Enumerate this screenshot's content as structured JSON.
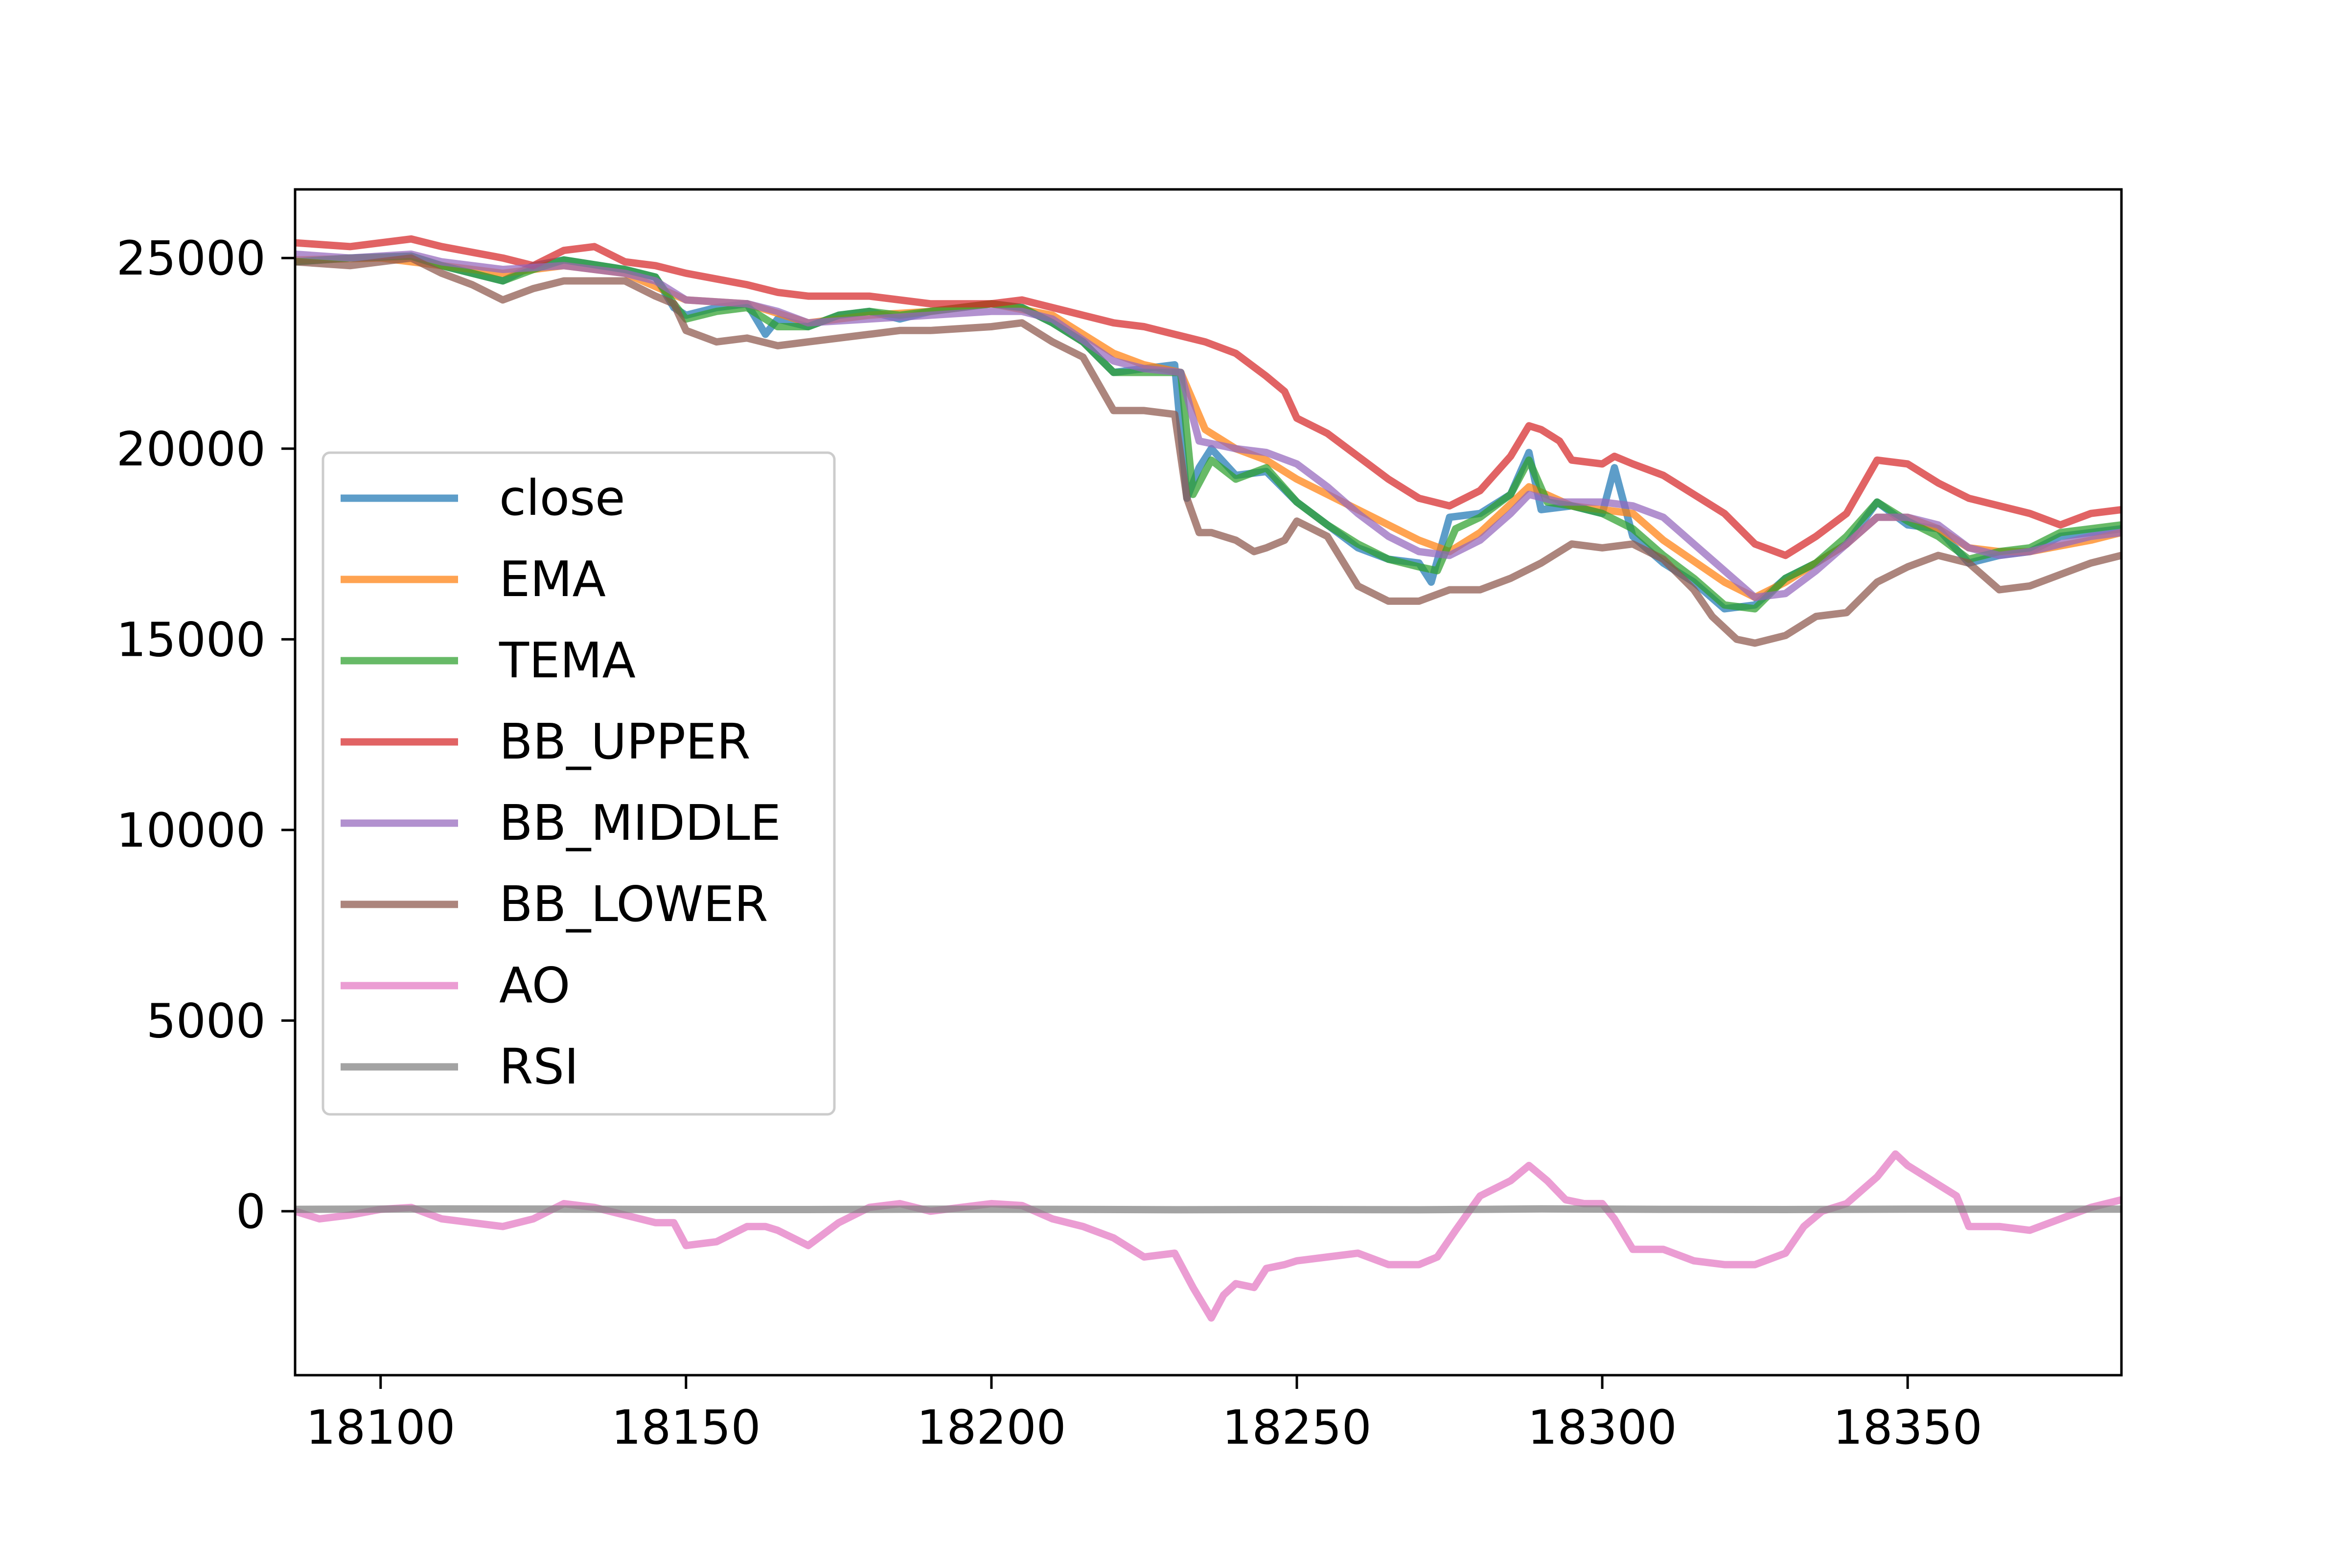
{
  "chart_data": {
    "type": "line",
    "title": "",
    "xlabel": "",
    "ylabel": "",
    "xlim": [
      18086,
      18385
    ],
    "ylim": [
      -4300,
      26800
    ],
    "xticks": [
      18100,
      18150,
      18200,
      18250,
      18300,
      18350
    ],
    "yticks": [
      0,
      5000,
      10000,
      15000,
      20000,
      25000
    ],
    "grid": false,
    "legend_position": "center-left",
    "series": [
      {
        "name": "close",
        "color": "#1f77b4",
        "x": [
          18086,
          18095,
          18105,
          18110,
          18120,
          18125,
          18130,
          18140,
          18145,
          18148,
          18150,
          18155,
          18160,
          18163,
          18165,
          18170,
          18175,
          18180,
          18185,
          18190,
          18195,
          18200,
          18205,
          18210,
          18215,
          18220,
          18225,
          18230,
          18232,
          18234,
          18236,
          18240,
          18245,
          18250,
          18255,
          18260,
          18265,
          18270,
          18272,
          18275,
          18280,
          18285,
          18288,
          18290,
          18295,
          18300,
          18302,
          18305,
          18310,
          18315,
          18320,
          18325,
          18330,
          18335,
          18340,
          18345,
          18350,
          18355,
          18360,
          18365,
          18370,
          18375,
          18380,
          18385
        ],
        "values": [
          24900,
          25000,
          25050,
          24800,
          24400,
          24800,
          24950,
          24700,
          24500,
          23700,
          23500,
          23700,
          23800,
          23000,
          23400,
          23200,
          23500,
          23600,
          23400,
          23600,
          23700,
          23800,
          23700,
          23300,
          22800,
          22000,
          22100,
          22200,
          18700,
          19500,
          20000,
          19300,
          19400,
          18600,
          18000,
          17400,
          17100,
          17000,
          16500,
          18200,
          18300,
          18800,
          19900,
          18400,
          18500,
          18300,
          19500,
          17700,
          17000,
          16500,
          15800,
          15900,
          16600,
          17000,
          17500,
          18600,
          18000,
          17900,
          17000,
          17200,
          17300,
          17700,
          17800,
          17900
        ]
      },
      {
        "name": "EMA",
        "color": "#ff7f0e",
        "x": [
          18086,
          18100,
          18110,
          18120,
          18130,
          18140,
          18150,
          18160,
          18170,
          18180,
          18190,
          18200,
          18210,
          18220,
          18225,
          18231,
          18235,
          18240,
          18245,
          18250,
          18260,
          18270,
          18275,
          18280,
          18288,
          18295,
          18300,
          18305,
          18310,
          18320,
          18325,
          18330,
          18340,
          18345,
          18350,
          18355,
          18360,
          18365,
          18370,
          18380,
          18385
        ],
        "values": [
          24950,
          25000,
          24800,
          24600,
          24800,
          24600,
          23900,
          23800,
          23300,
          23500,
          23600,
          23800,
          23500,
          22500,
          22200,
          22000,
          20500,
          20000,
          19700,
          19200,
          18400,
          17600,
          17300,
          17800,
          19000,
          18500,
          18400,
          18300,
          17600,
          16500,
          16100,
          16500,
          17500,
          18200,
          18200,
          17900,
          17400,
          17300,
          17300,
          17600,
          17800
        ]
      },
      {
        "name": "TEMA",
        "color": "#2ca02c",
        "x": [
          18086,
          18095,
          18105,
          18110,
          18120,
          18125,
          18130,
          18140,
          18145,
          18148,
          18150,
          18155,
          18160,
          18165,
          18170,
          18175,
          18180,
          18185,
          18190,
          18195,
          18200,
          18205,
          18210,
          18215,
          18220,
          18225,
          18231,
          18233,
          18236,
          18240,
          18245,
          18250,
          18255,
          18260,
          18265,
          18270,
          18273,
          18276,
          18280,
          18285,
          18288,
          18291,
          18295,
          18300,
          18305,
          18310,
          18315,
          18320,
          18325,
          18330,
          18335,
          18340,
          18345,
          18350,
          18355,
          18360,
          18365,
          18370,
          18375,
          18380,
          18385
        ],
        "values": [
          24900,
          25000,
          25050,
          24800,
          24400,
          24700,
          24950,
          24700,
          24500,
          23800,
          23400,
          23600,
          23700,
          23200,
          23200,
          23500,
          23600,
          23500,
          23600,
          23700,
          23800,
          23700,
          23300,
          22800,
          22000,
          22000,
          22000,
          18800,
          19700,
          19200,
          19500,
          18600,
          18000,
          17500,
          17100,
          16900,
          16800,
          17900,
          18200,
          18800,
          19700,
          18600,
          18500,
          18300,
          17900,
          17200,
          16600,
          15900,
          15800,
          16600,
          17000,
          17700,
          18600,
          18100,
          17700,
          17100,
          17300,
          17400,
          17800,
          17900,
          18000
        ]
      },
      {
        "name": "BB_UPPER",
        "color": "#d62728",
        "x": [
          18086,
          18095,
          18105,
          18110,
          18120,
          18125,
          18130,
          18135,
          18140,
          18145,
          18150,
          18160,
          18165,
          18170,
          18180,
          18190,
          18200,
          18205,
          18210,
          18215,
          18220,
          18225,
          18230,
          18235,
          18240,
          18245,
          18248,
          18250,
          18255,
          18260,
          18265,
          18270,
          18275,
          18280,
          18285,
          18288,
          18290,
          18293,
          18295,
          18300,
          18302,
          18305,
          18310,
          18315,
          18320,
          18325,
          18330,
          18335,
          18340,
          18345,
          18350,
          18355,
          18360,
          18370,
          18375,
          18380,
          18385
        ],
        "values": [
          25400,
          25300,
          25500,
          25300,
          25000,
          24800,
          25200,
          25300,
          24900,
          24800,
          24600,
          24300,
          24100,
          24000,
          24000,
          23800,
          23800,
          23900,
          23700,
          23500,
          23300,
          23200,
          23000,
          22800,
          22500,
          21900,
          21500,
          20800,
          20400,
          19800,
          19200,
          18700,
          18500,
          18900,
          19800,
          20600,
          20500,
          20200,
          19700,
          19600,
          19800,
          19600,
          19300,
          18800,
          18300,
          17500,
          17200,
          17700,
          18300,
          19700,
          19600,
          19100,
          18700,
          18300,
          18000,
          18300,
          18400
        ]
      },
      {
        "name": "BB_MIDDLE",
        "color": "#9467bd",
        "x": [
          18086,
          18095,
          18105,
          18110,
          18120,
          18130,
          18140,
          18145,
          18150,
          18160,
          18165,
          18170,
          18180,
          18190,
          18200,
          18205,
          18210,
          18220,
          18225,
          18231,
          18234,
          18240,
          18245,
          18250,
          18255,
          18260,
          18265,
          18270,
          18275,
          18280,
          18285,
          18288,
          18293,
          18300,
          18305,
          18310,
          18315,
          18320,
          18325,
          18330,
          18335,
          18340,
          18345,
          18350,
          18355,
          18360,
          18365,
          18370,
          18375,
          18380,
          18385
        ],
        "values": [
          25100,
          25000,
          25100,
          24900,
          24700,
          24800,
          24600,
          24400,
          23900,
          23800,
          23600,
          23300,
          23400,
          23500,
          23600,
          23600,
          23400,
          22300,
          22100,
          22000,
          20200,
          20000,
          19900,
          19600,
          19000,
          18300,
          17700,
          17300,
          17200,
          17600,
          18300,
          18800,
          18600,
          18600,
          18500,
          18200,
          17500,
          16800,
          16100,
          16200,
          16800,
          17500,
          18200,
          18200,
          18000,
          17400,
          17200,
          17300,
          17500,
          17700,
          17800
        ]
      },
      {
        "name": "BB_LOWER",
        "color": "#8c564b",
        "x": [
          18086,
          18095,
          18105,
          18110,
          18115,
          18120,
          18125,
          18130,
          18140,
          18145,
          18148,
          18150,
          18155,
          18160,
          18165,
          18170,
          18180,
          18185,
          18190,
          18200,
          18205,
          18210,
          18215,
          18220,
          18225,
          18230,
          18232,
          18234,
          18236,
          18240,
          18243,
          18245,
          18248,
          18250,
          18255,
          18260,
          18265,
          18270,
          18275,
          18280,
          18285,
          18290,
          18295,
          18300,
          18305,
          18310,
          18315,
          18318,
          18322,
          18325,
          18330,
          18335,
          18340,
          18345,
          18350,
          18355,
          18360,
          18365,
          18370,
          18375,
          18380,
          18385
        ],
        "values": [
          24900,
          24800,
          25000,
          24600,
          24300,
          23900,
          24200,
          24400,
          24400,
          24000,
          23800,
          23100,
          22800,
          22900,
          22700,
          22800,
          23000,
          23100,
          23100,
          23200,
          23300,
          22800,
          22400,
          21000,
          21000,
          20900,
          18700,
          17800,
          17800,
          17600,
          17300,
          17400,
          17600,
          18100,
          17700,
          16400,
          16000,
          16000,
          16300,
          16300,
          16600,
          17000,
          17500,
          17400,
          17500,
          17100,
          16300,
          15600,
          15000,
          14900,
          15100,
          15600,
          15700,
          16500,
          16900,
          17200,
          17000,
          16300,
          16400,
          16700,
          17000,
          17200
        ]
      },
      {
        "name": "AO",
        "color": "#e377c2",
        "x": [
          18086,
          18090,
          18095,
          18100,
          18105,
          18110,
          18115,
          18120,
          18125,
          18130,
          18135,
          18140,
          18145,
          18148,
          18150,
          18155,
          18160,
          18163,
          18165,
          18170,
          18175,
          18180,
          18185,
          18190,
          18195,
          18200,
          18205,
          18210,
          18215,
          18220,
          18225,
          18230,
          18233,
          18236,
          18238,
          18240,
          18243,
          18245,
          18248,
          18250,
          18255,
          18260,
          18265,
          18270,
          18273,
          18276,
          18280,
          18285,
          18288,
          18291,
          18294,
          18297,
          18300,
          18302,
          18305,
          18310,
          18315,
          18320,
          18325,
          18330,
          18333,
          18336,
          18340,
          18345,
          18348,
          18350,
          18355,
          18358,
          18360,
          18365,
          18370,
          18375,
          18380,
          18385
        ],
        "values": [
          0,
          -200,
          -100,
          50,
          100,
          -200,
          -300,
          -400,
          -200,
          200,
          100,
          -100,
          -300,
          -300,
          -900,
          -800,
          -400,
          -400,
          -500,
          -900,
          -300,
          100,
          200,
          0,
          100,
          200,
          150,
          -200,
          -400,
          -700,
          -1200,
          -1100,
          -2000,
          -2800,
          -2200,
          -1900,
          -2000,
          -1500,
          -1400,
          -1300,
          -1200,
          -1100,
          -1400,
          -1400,
          -1200,
          -500,
          400,
          800,
          1200,
          800,
          300,
          200,
          200,
          -200,
          -1000,
          -1000,
          -1300,
          -1400,
          -1400,
          -1100,
          -400,
          0,
          200,
          900,
          1500,
          1200,
          700,
          400,
          -400,
          -400,
          -500,
          -200,
          100,
          300
        ]
      },
      {
        "name": "RSI",
        "color": "#7f7f7f",
        "x": [
          18086,
          18110,
          18130,
          18150,
          18170,
          18190,
          18210,
          18230,
          18250,
          18270,
          18290,
          18310,
          18330,
          18350,
          18370,
          18385
        ],
        "values": [
          50,
          60,
          55,
          45,
          45,
          55,
          50,
          40,
          45,
          40,
          60,
          50,
          45,
          55,
          55,
          55
        ]
      }
    ]
  }
}
